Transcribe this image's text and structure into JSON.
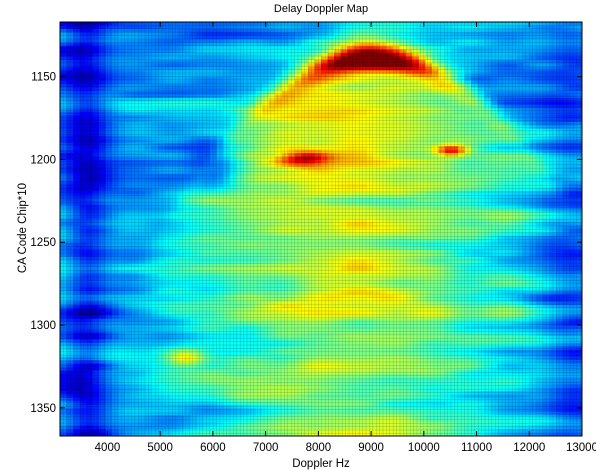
{
  "chart_data": {
    "type": "heatmap",
    "title": "Delay Doppler Map",
    "xlabel": "Doppler Hz",
    "ylabel": "CA Code Chip*10",
    "xlim": [
      3100,
      13000
    ],
    "ylim": [
      1117,
      1367
    ],
    "y_reversed": true,
    "grid": true,
    "colormap": "jet",
    "xticks": [
      4000,
      5000,
      6000,
      7000,
      8000,
      9000,
      10000,
      11000,
      12000,
      13000
    ],
    "yticks": [
      1150,
      1200,
      1250,
      1300,
      1350
    ],
    "xtick_labels": [
      "4000",
      "5000",
      "6000",
      "7000",
      "8000",
      "9000",
      "10000",
      "11000",
      "12000",
      "13000"
    ],
    "ytick_labels": [
      "1150",
      "1200",
      "1250",
      "1300",
      "1350"
    ],
    "value_range": [
      0,
      1
    ],
    "features": [
      {
        "doppler": 9200,
        "delay": 1170,
        "intensity": 1.0
      },
      {
        "doppler": 8200,
        "delay": 1183,
        "intensity": 0.9
      },
      {
        "doppler": 10800,
        "delay": 1196,
        "intensity": 0.85
      },
      {
        "doppler": 5500,
        "delay": 1325,
        "intensity": 0.7
      }
    ]
  }
}
